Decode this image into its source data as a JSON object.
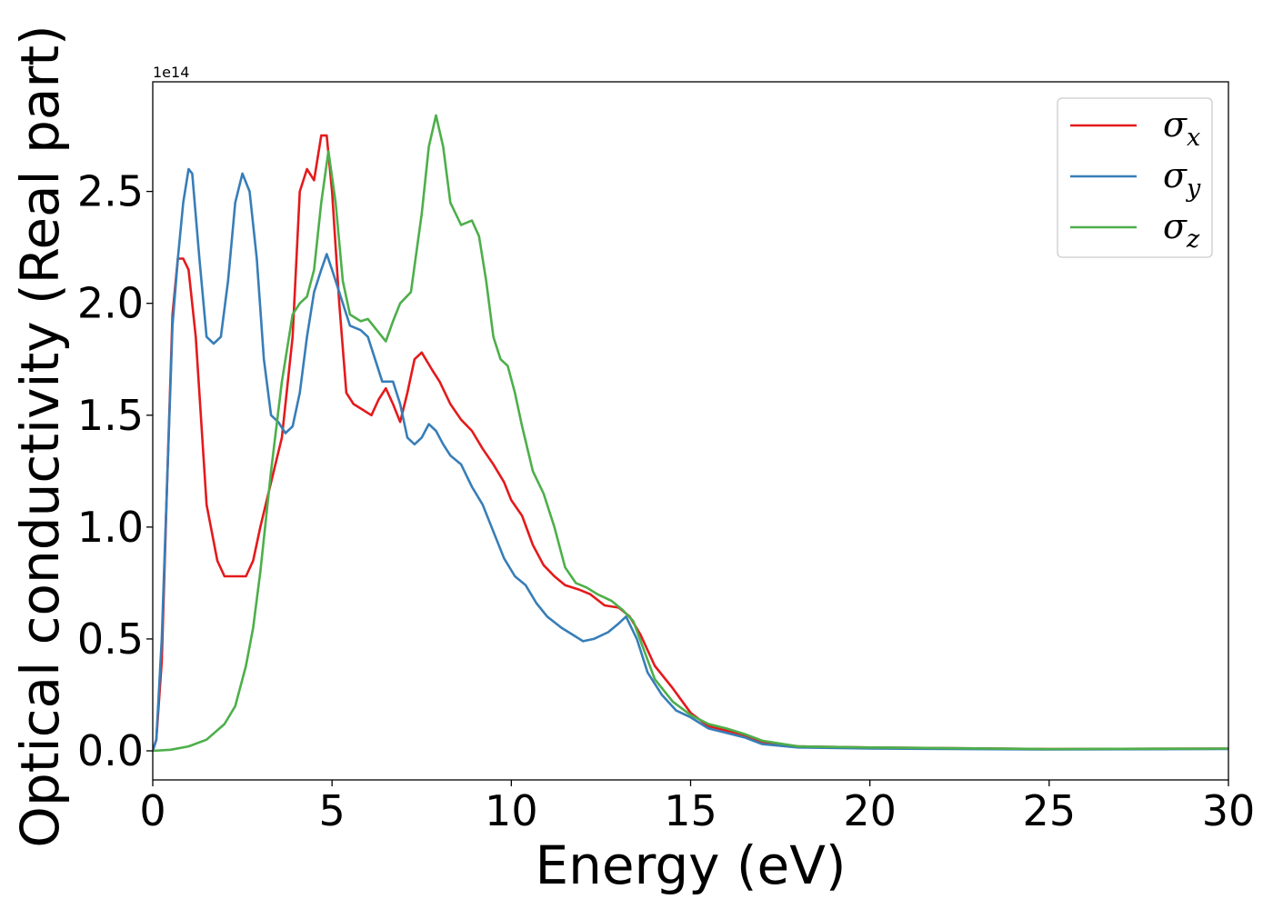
{
  "chart_data": {
    "type": "line",
    "xlabel": "Energy (eV)",
    "ylabel": "Optical conductivity (Real part)",
    "y_offset_text": "1e14",
    "y_scale": 100000000000000.0,
    "xlim": [
      0,
      30
    ],
    "ylim": [
      -0.13,
      2.99
    ],
    "xticks": [
      0,
      5,
      10,
      15,
      20,
      25,
      30
    ],
    "xtick_labels": [
      "0",
      "5",
      "10",
      "15",
      "20",
      "25",
      "30"
    ],
    "yticks": [
      0,
      0.5,
      1.0,
      1.5,
      2.0,
      2.5
    ],
    "ytick_labels": [
      "0.0",
      "0.5",
      "1.0",
      "1.5",
      "2.0",
      "2.5"
    ],
    "grid": false,
    "legend_position": "top-right",
    "series": [
      {
        "name": "σx",
        "name_base": "σ",
        "name_sub": "x",
        "color": "#e41a1c",
        "points": [
          [
            0,
            0
          ],
          [
            0.1,
            0.05
          ],
          [
            0.25,
            0.4
          ],
          [
            0.4,
            1.2
          ],
          [
            0.55,
            1.95
          ],
          [
            0.7,
            2.2
          ],
          [
            0.85,
            2.2
          ],
          [
            1.0,
            2.15
          ],
          [
            1.2,
            1.85
          ],
          [
            1.5,
            1.1
          ],
          [
            1.8,
            0.85
          ],
          [
            2.0,
            0.78
          ],
          [
            2.3,
            0.78
          ],
          [
            2.6,
            0.78
          ],
          [
            2.8,
            0.85
          ],
          [
            3.0,
            1.0
          ],
          [
            3.3,
            1.2
          ],
          [
            3.6,
            1.4
          ],
          [
            3.9,
            1.85
          ],
          [
            4.1,
            2.5
          ],
          [
            4.3,
            2.6
          ],
          [
            4.5,
            2.55
          ],
          [
            4.7,
            2.75
          ],
          [
            4.85,
            2.75
          ],
          [
            5.0,
            2.5
          ],
          [
            5.2,
            2.0
          ],
          [
            5.4,
            1.6
          ],
          [
            5.6,
            1.55
          ],
          [
            5.8,
            1.53
          ],
          [
            6.1,
            1.5
          ],
          [
            6.3,
            1.57
          ],
          [
            6.5,
            1.62
          ],
          [
            6.7,
            1.55
          ],
          [
            6.9,
            1.47
          ],
          [
            7.1,
            1.6
          ],
          [
            7.3,
            1.75
          ],
          [
            7.5,
            1.78
          ],
          [
            7.8,
            1.7
          ],
          [
            8.0,
            1.65
          ],
          [
            8.3,
            1.55
          ],
          [
            8.6,
            1.48
          ],
          [
            8.9,
            1.43
          ],
          [
            9.2,
            1.35
          ],
          [
            9.5,
            1.28
          ],
          [
            9.8,
            1.2
          ],
          [
            10.0,
            1.12
          ],
          [
            10.3,
            1.05
          ],
          [
            10.6,
            0.92
          ],
          [
            10.9,
            0.83
          ],
          [
            11.2,
            0.78
          ],
          [
            11.5,
            0.74
          ],
          [
            11.9,
            0.72
          ],
          [
            12.2,
            0.7
          ],
          [
            12.6,
            0.65
          ],
          [
            13.0,
            0.64
          ],
          [
            13.3,
            0.6
          ],
          [
            13.6,
            0.52
          ],
          [
            14.0,
            0.38
          ],
          [
            14.5,
            0.28
          ],
          [
            15.0,
            0.17
          ],
          [
            15.5,
            0.11
          ],
          [
            16.0,
            0.09
          ],
          [
            16.5,
            0.07
          ],
          [
            17.0,
            0.04
          ],
          [
            18.0,
            0.02
          ],
          [
            20.0,
            0.015
          ],
          [
            25.0,
            0.008
          ],
          [
            30.0,
            0.01
          ]
        ]
      },
      {
        "name": "σy",
        "name_base": "σ",
        "name_sub": "y",
        "color": "#377eb8",
        "points": [
          [
            0,
            0
          ],
          [
            0.1,
            0.05
          ],
          [
            0.25,
            0.5
          ],
          [
            0.4,
            1.2
          ],
          [
            0.55,
            1.9
          ],
          [
            0.7,
            2.2
          ],
          [
            0.85,
            2.45
          ],
          [
            1.0,
            2.6
          ],
          [
            1.1,
            2.58
          ],
          [
            1.3,
            2.2
          ],
          [
            1.5,
            1.85
          ],
          [
            1.7,
            1.82
          ],
          [
            1.9,
            1.85
          ],
          [
            2.1,
            2.1
          ],
          [
            2.3,
            2.45
          ],
          [
            2.5,
            2.58
          ],
          [
            2.7,
            2.5
          ],
          [
            2.9,
            2.2
          ],
          [
            3.1,
            1.75
          ],
          [
            3.3,
            1.5
          ],
          [
            3.5,
            1.47
          ],
          [
            3.7,
            1.42
          ],
          [
            3.9,
            1.45
          ],
          [
            4.1,
            1.6
          ],
          [
            4.3,
            1.85
          ],
          [
            4.5,
            2.05
          ],
          [
            4.7,
            2.15
          ],
          [
            4.85,
            2.22
          ],
          [
            5.0,
            2.15
          ],
          [
            5.2,
            2.05
          ],
          [
            5.5,
            1.9
          ],
          [
            5.8,
            1.88
          ],
          [
            6.0,
            1.85
          ],
          [
            6.2,
            1.75
          ],
          [
            6.4,
            1.65
          ],
          [
            6.7,
            1.65
          ],
          [
            6.9,
            1.55
          ],
          [
            7.1,
            1.4
          ],
          [
            7.3,
            1.37
          ],
          [
            7.5,
            1.4
          ],
          [
            7.7,
            1.46
          ],
          [
            7.9,
            1.43
          ],
          [
            8.1,
            1.37
          ],
          [
            8.3,
            1.32
          ],
          [
            8.6,
            1.28
          ],
          [
            8.9,
            1.18
          ],
          [
            9.2,
            1.1
          ],
          [
            9.5,
            0.98
          ],
          [
            9.8,
            0.86
          ],
          [
            10.1,
            0.78
          ],
          [
            10.4,
            0.74
          ],
          [
            10.7,
            0.66
          ],
          [
            11.0,
            0.6
          ],
          [
            11.4,
            0.55
          ],
          [
            11.7,
            0.52
          ],
          [
            12.0,
            0.49
          ],
          [
            12.3,
            0.5
          ],
          [
            12.7,
            0.53
          ],
          [
            13.0,
            0.57
          ],
          [
            13.2,
            0.6
          ],
          [
            13.5,
            0.5
          ],
          [
            13.8,
            0.35
          ],
          [
            14.2,
            0.25
          ],
          [
            14.6,
            0.18
          ],
          [
            15.0,
            0.15
          ],
          [
            15.5,
            0.1
          ],
          [
            16.0,
            0.08
          ],
          [
            16.5,
            0.06
          ],
          [
            17.0,
            0.03
          ],
          [
            18.0,
            0.015
          ],
          [
            20.0,
            0.01
          ],
          [
            25.0,
            0.006
          ],
          [
            30.0,
            0.008
          ]
        ]
      },
      {
        "name": "σz",
        "name_base": "σ",
        "name_sub": "z",
        "color": "#4daf4a",
        "points": [
          [
            0,
            0
          ],
          [
            0.5,
            0.005
          ],
          [
            1.0,
            0.02
          ],
          [
            1.5,
            0.05
          ],
          [
            2.0,
            0.12
          ],
          [
            2.3,
            0.2
          ],
          [
            2.6,
            0.38
          ],
          [
            2.8,
            0.55
          ],
          [
            3.0,
            0.8
          ],
          [
            3.3,
            1.25
          ],
          [
            3.6,
            1.65
          ],
          [
            3.9,
            1.95
          ],
          [
            4.1,
            2.0
          ],
          [
            4.3,
            2.03
          ],
          [
            4.5,
            2.15
          ],
          [
            4.7,
            2.45
          ],
          [
            4.9,
            2.68
          ],
          [
            5.1,
            2.45
          ],
          [
            5.3,
            2.1
          ],
          [
            5.5,
            1.95
          ],
          [
            5.8,
            1.92
          ],
          [
            6.0,
            1.93
          ],
          [
            6.3,
            1.87
          ],
          [
            6.5,
            1.83
          ],
          [
            6.7,
            1.92
          ],
          [
            6.9,
            2.0
          ],
          [
            7.2,
            2.05
          ],
          [
            7.5,
            2.4
          ],
          [
            7.7,
            2.7
          ],
          [
            7.9,
            2.84
          ],
          [
            8.1,
            2.7
          ],
          [
            8.3,
            2.45
          ],
          [
            8.6,
            2.35
          ],
          [
            8.9,
            2.37
          ],
          [
            9.1,
            2.3
          ],
          [
            9.3,
            2.1
          ],
          [
            9.5,
            1.85
          ],
          [
            9.7,
            1.75
          ],
          [
            9.9,
            1.72
          ],
          [
            10.1,
            1.6
          ],
          [
            10.3,
            1.45
          ],
          [
            10.6,
            1.25
          ],
          [
            10.9,
            1.15
          ],
          [
            11.2,
            1.0
          ],
          [
            11.5,
            0.82
          ],
          [
            11.8,
            0.75
          ],
          [
            12.1,
            0.73
          ],
          [
            12.4,
            0.7
          ],
          [
            12.8,
            0.67
          ],
          [
            13.1,
            0.63
          ],
          [
            13.4,
            0.58
          ],
          [
            13.7,
            0.45
          ],
          [
            14.0,
            0.32
          ],
          [
            14.5,
            0.22
          ],
          [
            15.0,
            0.16
          ],
          [
            15.5,
            0.12
          ],
          [
            16.0,
            0.1
          ],
          [
            16.5,
            0.075
          ],
          [
            17.0,
            0.045
          ],
          [
            18.0,
            0.02
          ],
          [
            20.0,
            0.015
          ],
          [
            25.0,
            0.008
          ],
          [
            30.0,
            0.01
          ]
        ]
      }
    ]
  }
}
